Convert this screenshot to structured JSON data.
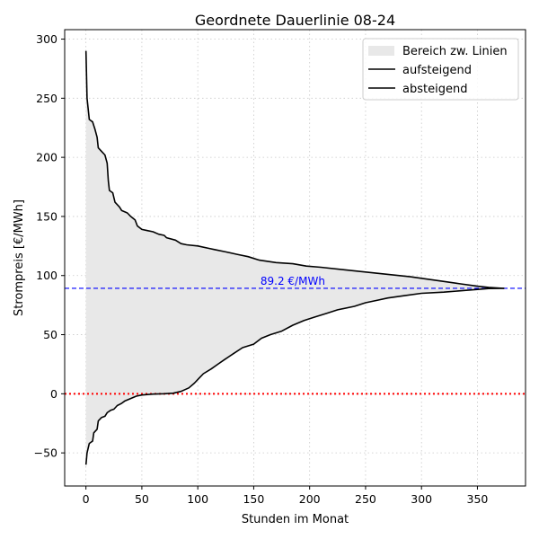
{
  "chart_data": {
    "type": "line",
    "title": "Geordnete Dauerlinie 08-24",
    "xlabel": "Stunden im Monat",
    "ylabel": "Strompreis [€/MWh]",
    "xlim": [
      -19,
      393
    ],
    "ylim": [
      -78,
      308
    ],
    "xticks": [
      0,
      50,
      100,
      150,
      200,
      250,
      300,
      350
    ],
    "yticks": [
      -50,
      0,
      50,
      100,
      150,
      200,
      250,
      300
    ],
    "grid": true,
    "legend_position": "top-right",
    "legend": [
      "Bereich zw. Linien",
      "aufsteigend",
      "absteigend"
    ],
    "fill_color": "#e8e8e8",
    "line_color": "#000000",
    "series": [
      {
        "name": "absteigend",
        "points": [
          [
            0,
            290
          ],
          [
            1,
            250
          ],
          [
            3,
            232
          ],
          [
            6,
            230
          ],
          [
            8,
            224
          ],
          [
            10,
            217
          ],
          [
            11,
            208
          ],
          [
            14,
            205
          ],
          [
            17,
            202
          ],
          [
            19,
            195
          ],
          [
            20,
            180
          ],
          [
            21,
            172
          ],
          [
            24,
            170
          ],
          [
            26,
            162
          ],
          [
            30,
            158
          ],
          [
            32,
            155
          ],
          [
            37,
            153
          ],
          [
            40,
            150
          ],
          [
            44,
            147
          ],
          [
            46,
            142
          ],
          [
            50,
            139
          ],
          [
            55,
            138
          ],
          [
            60,
            137
          ],
          [
            65,
            135
          ],
          [
            70,
            134
          ],
          [
            72,
            132
          ],
          [
            80,
            130
          ],
          [
            85,
            127
          ],
          [
            90,
            126
          ],
          [
            100,
            125
          ],
          [
            110,
            123
          ],
          [
            115,
            122
          ],
          [
            125,
            120
          ],
          [
            135,
            118
          ],
          [
            145,
            116
          ],
          [
            155,
            113
          ],
          [
            170,
            111
          ],
          [
            185,
            110
          ],
          [
            197,
            108
          ],
          [
            210,
            107
          ],
          [
            230,
            105
          ],
          [
            250,
            103
          ],
          [
            270,
            101
          ],
          [
            290,
            99
          ],
          [
            305,
            97
          ],
          [
            320,
            95
          ],
          [
            335,
            93
          ],
          [
            350,
            91
          ],
          [
            360,
            90
          ],
          [
            374,
            89.2
          ]
        ]
      },
      {
        "name": "aufsteigend",
        "points": [
          [
            0,
            -60
          ],
          [
            1,
            -50
          ],
          [
            3,
            -42
          ],
          [
            6,
            -40
          ],
          [
            7,
            -33
          ],
          [
            10,
            -30
          ],
          [
            11,
            -23
          ],
          [
            14,
            -20
          ],
          [
            17,
            -19
          ],
          [
            19,
            -16
          ],
          [
            22,
            -14
          ],
          [
            25,
            -13
          ],
          [
            28,
            -10
          ],
          [
            32,
            -8
          ],
          [
            35,
            -6
          ],
          [
            40,
            -4
          ],
          [
            45,
            -2
          ],
          [
            50,
            -1
          ],
          [
            60,
            -0.3
          ],
          [
            70,
            0
          ],
          [
            78,
            0.5
          ],
          [
            85,
            2
          ],
          [
            92,
            5
          ],
          [
            97,
            9
          ],
          [
            101,
            13
          ],
          [
            105,
            17
          ],
          [
            112,
            21
          ],
          [
            118,
            25
          ],
          [
            124,
            29
          ],
          [
            132,
            34
          ],
          [
            140,
            39
          ],
          [
            150,
            42
          ],
          [
            157,
            47
          ],
          [
            165,
            50
          ],
          [
            175,
            53
          ],
          [
            185,
            58
          ],
          [
            195,
            62
          ],
          [
            205,
            65
          ],
          [
            215,
            68
          ],
          [
            225,
            71
          ],
          [
            240,
            74
          ],
          [
            250,
            77
          ],
          [
            260,
            79
          ],
          [
            270,
            81
          ],
          [
            285,
            83
          ],
          [
            300,
            85
          ],
          [
            320,
            86
          ],
          [
            340,
            87.5
          ],
          [
            360,
            89
          ],
          [
            374,
            89.2
          ]
        ]
      }
    ],
    "reference_lines": [
      {
        "orientation": "horizontal",
        "y": 89.2,
        "color": "#0000ff",
        "style": "dashed",
        "label": "89.2 €/MWh",
        "label_x": 156
      },
      {
        "orientation": "horizontal",
        "y": 0,
        "color": "#ff0000",
        "style": "dotted"
      }
    ]
  }
}
